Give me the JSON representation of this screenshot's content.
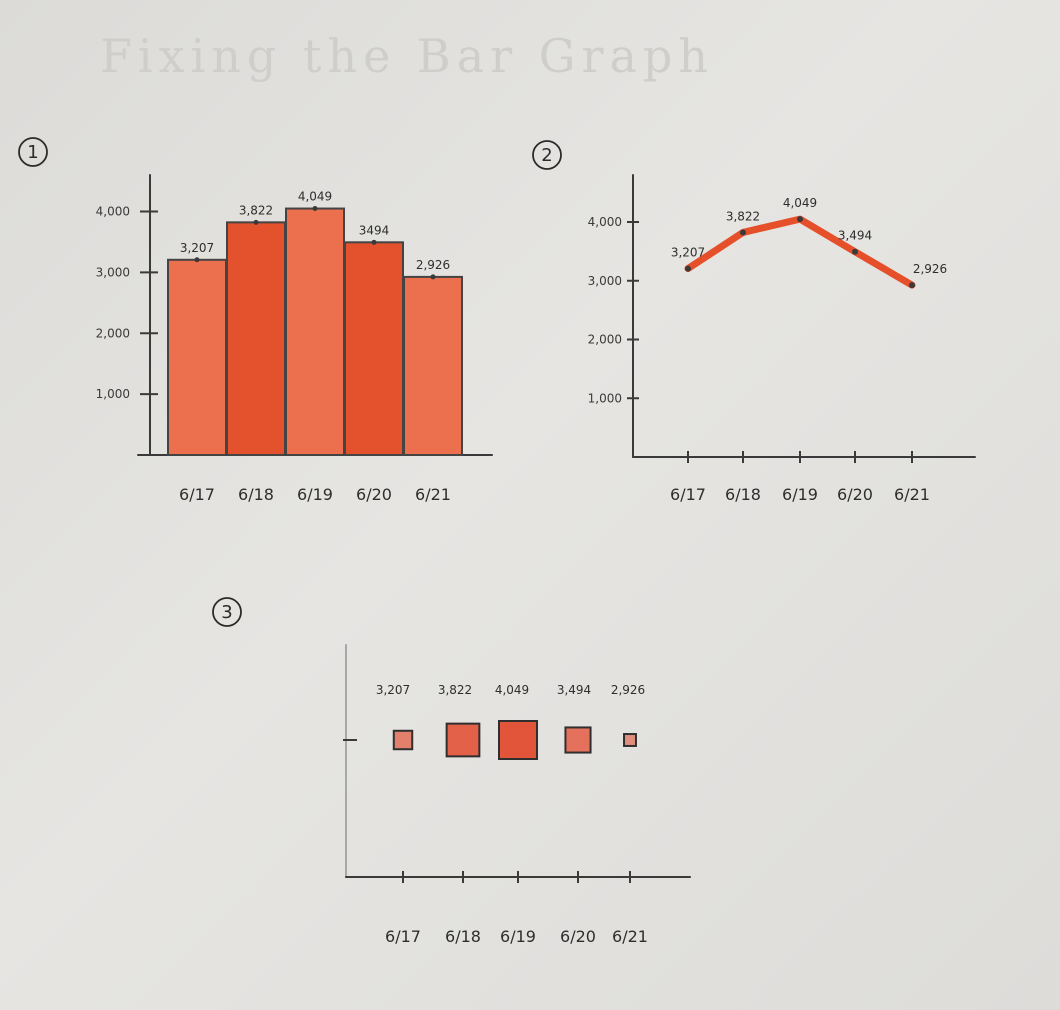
{
  "page_title": "Fixing the Bar Graph",
  "colors": {
    "bar_fill": "#e4512d",
    "bar_fill_light": "#ec6f4e",
    "line": "#e5502b",
    "square_fill": "#e2553a",
    "ink": "#2e2e2e"
  },
  "chart_data": [
    {
      "type": "bar",
      "number": "1",
      "categories": [
        "6/17",
        "6/18",
        "6/19",
        "6/20",
        "6/21"
      ],
      "values": [
        3207,
        3822,
        4049,
        3494,
        2926
      ],
      "value_labels": [
        "3,207",
        "3,822",
        "4,049",
        "3494",
        "2,926"
      ],
      "yticks": [
        1000,
        2000,
        3000,
        4000
      ],
      "ytick_labels": [
        "1,000",
        "2,000",
        "3,000",
        "4,000"
      ],
      "ylim": [
        0,
        4600
      ]
    },
    {
      "type": "line",
      "number": "2",
      "categories": [
        "6/17",
        "6/18",
        "6/19",
        "6/20",
        "6/21"
      ],
      "values": [
        3207,
        3822,
        4049,
        3494,
        2926
      ],
      "value_labels": [
        "3,207",
        "3,822",
        "4,049",
        "3,494",
        "2,926"
      ],
      "yticks": [
        1000,
        2000,
        3000,
        4000
      ],
      "ytick_labels": [
        "1,000",
        "2,000",
        "3,000",
        "4,000"
      ],
      "ylim": [
        0,
        4800
      ]
    },
    {
      "type": "scatter",
      "number": "3",
      "categories": [
        "6/17",
        "6/18",
        "6/19",
        "6/20",
        "6/21"
      ],
      "values": [
        3207,
        3822,
        4049,
        3494,
        2926
      ],
      "value_labels": [
        "3,207",
        "3,822",
        "4,049",
        "3,494",
        "2,926"
      ],
      "encoding": "square size"
    }
  ]
}
